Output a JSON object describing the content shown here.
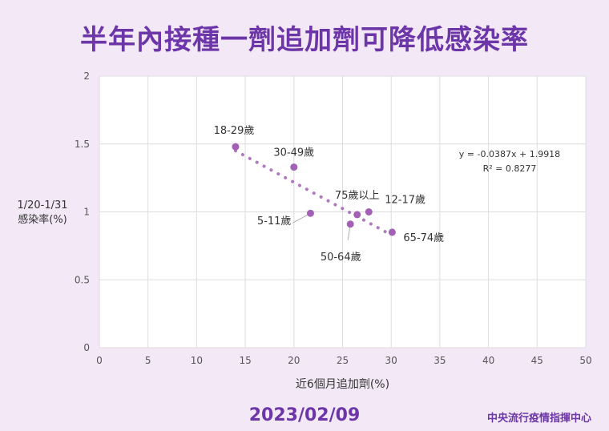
{
  "header": {
    "title": "半年內接種一劑追加劑可降低感染率"
  },
  "footer": {
    "date": "2023/02/09",
    "org": "中央流行疫情指揮中心"
  },
  "chart_data": {
    "type": "scatter",
    "xlabel": "近6個月追加劑(%)",
    "ylabel_lines": [
      "1/20-1/31",
      "感染率(%)"
    ],
    "xlim": [
      0,
      50
    ],
    "ylim": [
      0,
      2
    ],
    "x_ticks": [
      "0",
      "5",
      "10",
      "15",
      "20",
      "25",
      "30",
      "35",
      "40",
      "45",
      "50"
    ],
    "y_ticks": [
      "0",
      "0.5",
      "1",
      "1.5",
      "2"
    ],
    "grid": true,
    "points": [
      {
        "label": "18-29歲",
        "x": 14.0,
        "y": 1.48
      },
      {
        "label": "30-49歲",
        "x": 20.0,
        "y": 1.33
      },
      {
        "label": "75歲以上",
        "x": 26.5,
        "y": 0.98
      },
      {
        "label": "12-17歲",
        "x": 27.7,
        "y": 1.0
      },
      {
        "label": "5-11歲",
        "x": 21.7,
        "y": 0.99
      },
      {
        "label": "50-64歲",
        "x": 25.8,
        "y": 0.91
      },
      {
        "label": "65-74歲",
        "x": 30.1,
        "y": 0.85
      }
    ],
    "trendline": {
      "slope": -0.0387,
      "intercept": 1.9918,
      "equation": "y = -0.0387x + 1.9918",
      "r2": "R² = 0.8277"
    },
    "colors": {
      "point": "#a261b5",
      "grid": "#dcdcdc",
      "plot_bg": "#ffffff"
    }
  }
}
